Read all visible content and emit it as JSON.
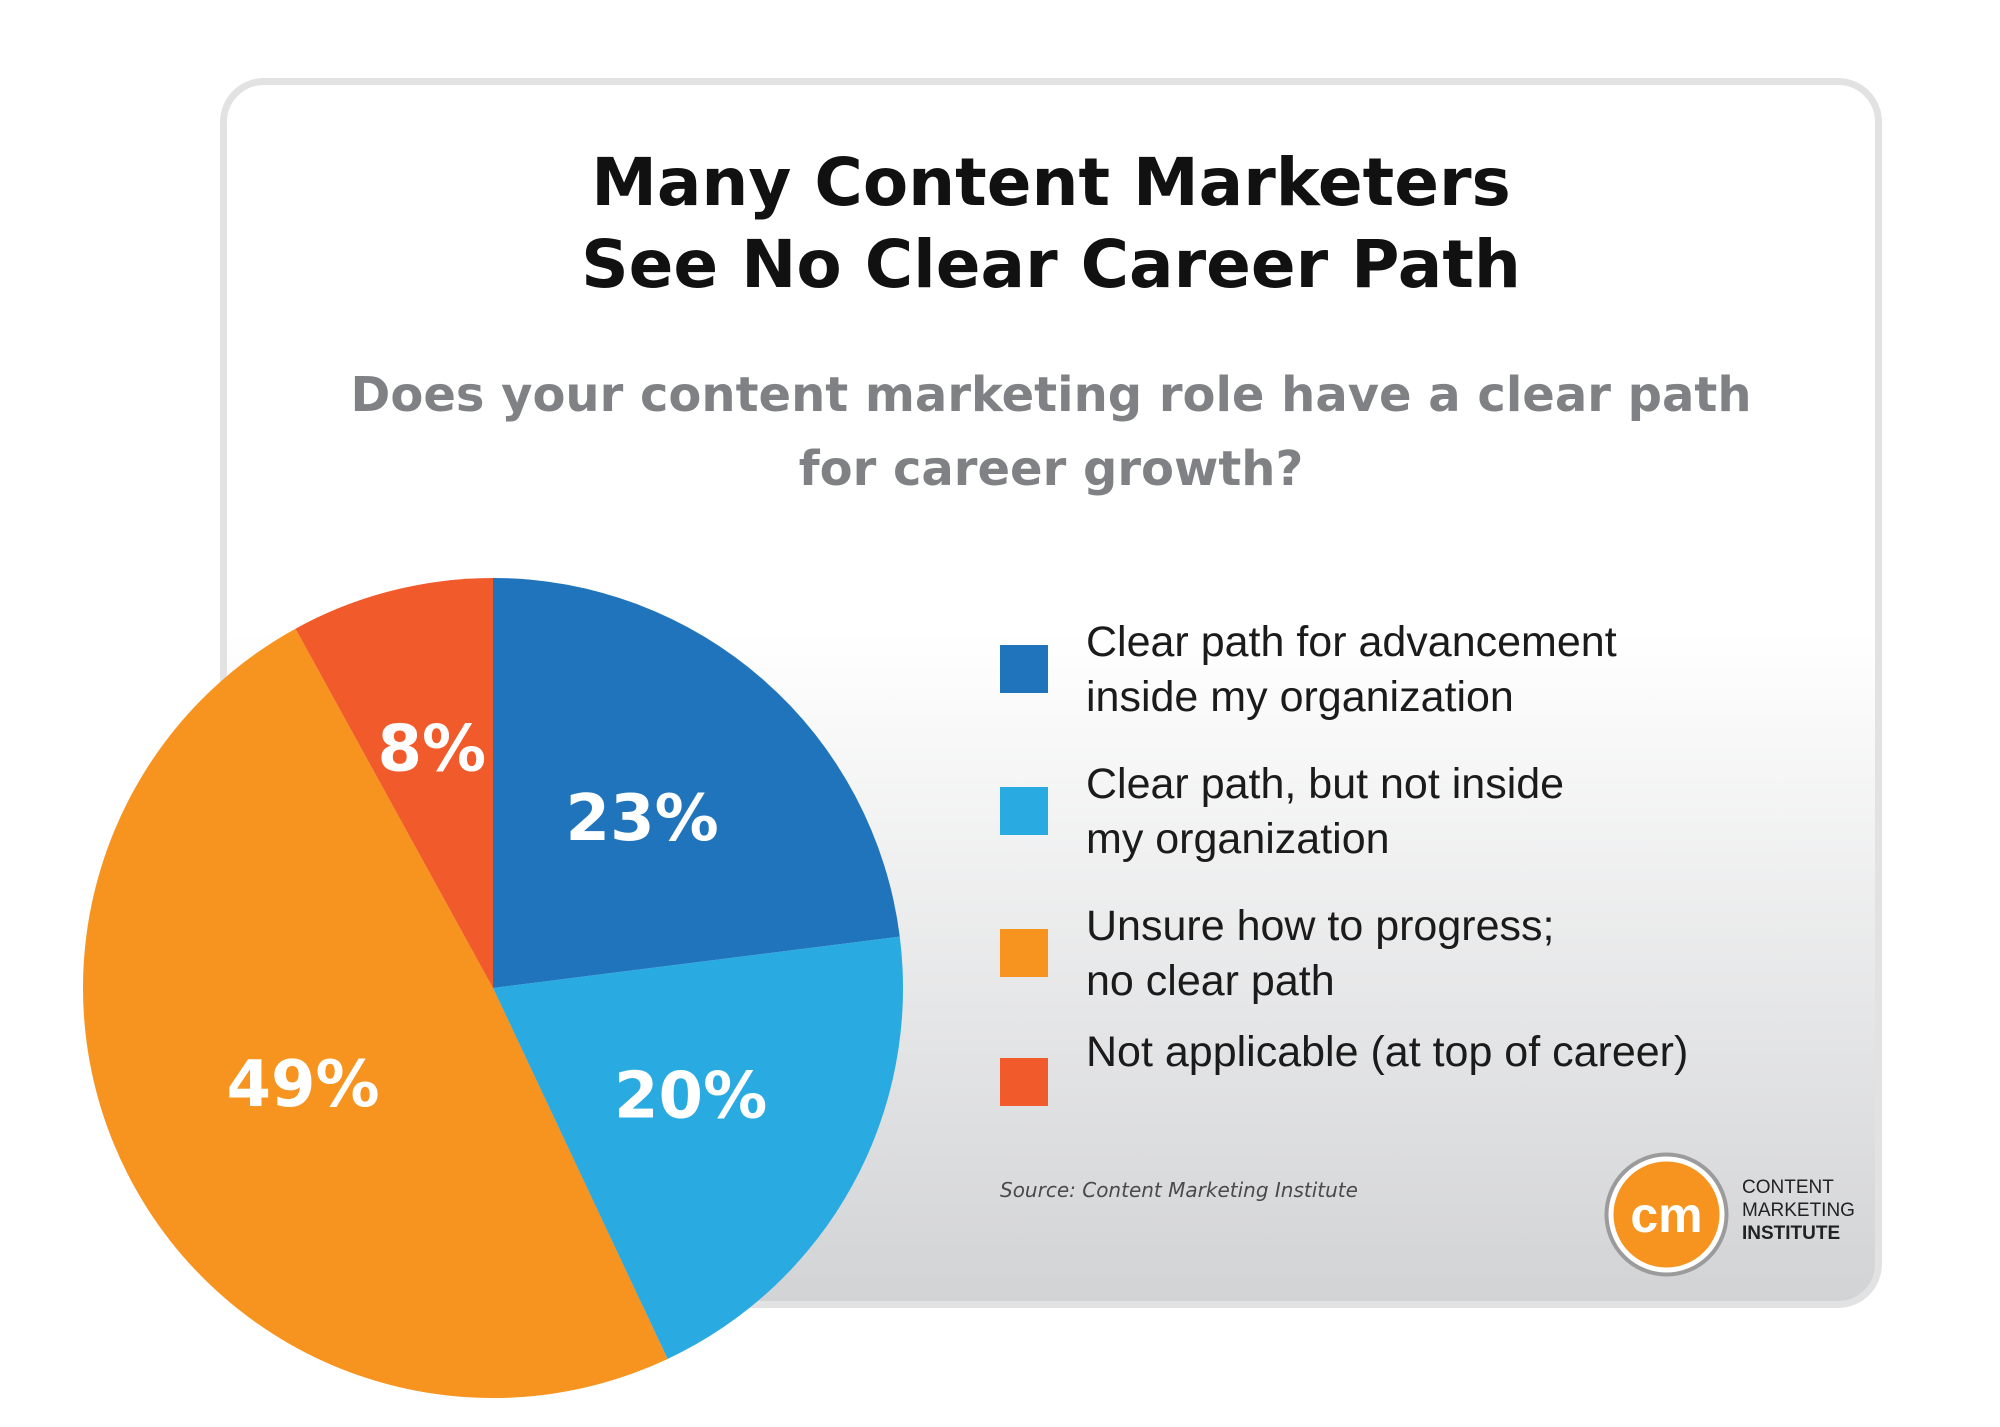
{
  "title": [
    "Many Content Marketers",
    "See No Clear Career Path"
  ],
  "subtitle": [
    "Does your content marketing role have a clear path",
    "for career growth?"
  ],
  "chart_data": {
    "type": "pie",
    "title": "Many Content Marketers See No Clear Career Path",
    "subtitle": "Does your content marketing role have a clear path for career growth?",
    "unit": "%",
    "slices": [
      {
        "label": [
          "Clear path for advancement",
          "inside my organization"
        ],
        "value": 23,
        "display": "23%",
        "color": "#1f74bb"
      },
      {
        "label": [
          "Clear path, but not inside",
          "my organization"
        ],
        "value": 20,
        "display": "20%",
        "color": "#29aae1"
      },
      {
        "label": [
          "Unsure how to progress;",
          "no clear path"
        ],
        "value": 49,
        "display": "49%",
        "color": "#f6941f"
      },
      {
        "label": [
          "Not applicable (at top of career)"
        ],
        "value": 8,
        "display": "8%",
        "color": "#f15a2b"
      }
    ],
    "legend_position": "right"
  },
  "source": "Source: Content Marketing Institute",
  "logo": {
    "mark": "cm",
    "lines": [
      "CONTENT",
      "MARKETING",
      "INSTITUTE"
    ],
    "color": "#f6941f"
  }
}
